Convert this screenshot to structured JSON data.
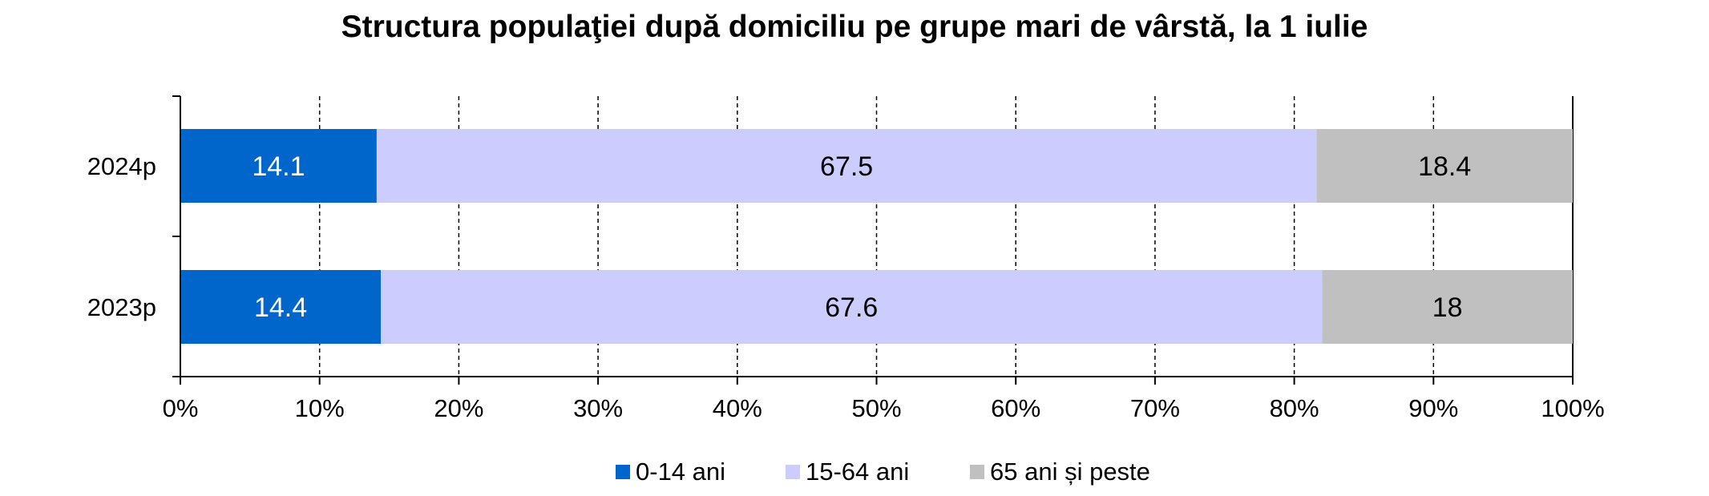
{
  "chart_data": {
    "type": "bar",
    "orientation": "horizontal",
    "stacked": "percent",
    "title": "Structura populaţiei după domiciliu pe grupe mari de vârstă, la 1 iulie",
    "categories": [
      "2024p",
      "2023p"
    ],
    "series": [
      {
        "name": "0-14 ani",
        "values": [
          14.1,
          14.4
        ],
        "color": "#0066CC",
        "label_color": "#ffffff"
      },
      {
        "name": "15-64 ani",
        "values": [
          67.5,
          67.6
        ],
        "color": "#CCCCFF",
        "label_color": "#000000"
      },
      {
        "name": "65 ani și peste",
        "values": [
          18.4,
          18
        ],
        "color": "#C0C0C0",
        "label_color": "#000000"
      }
    ],
    "x_ticks": [
      "0%",
      "10%",
      "20%",
      "30%",
      "40%",
      "50%",
      "60%",
      "70%",
      "80%",
      "90%",
      "100%"
    ],
    "xlim": [
      0,
      100
    ],
    "grid": "vertical dashed",
    "legend_position": "bottom"
  }
}
